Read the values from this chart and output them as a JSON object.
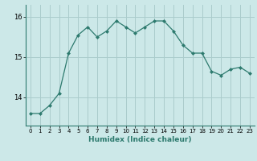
{
  "x": [
    0,
    1,
    2,
    3,
    4,
    5,
    6,
    7,
    8,
    9,
    10,
    11,
    12,
    13,
    14,
    15,
    16,
    17,
    18,
    19,
    20,
    21,
    22,
    23
  ],
  "y": [
    13.6,
    13.6,
    13.8,
    14.1,
    15.1,
    15.55,
    15.75,
    15.5,
    15.65,
    15.9,
    15.75,
    15.6,
    15.75,
    15.9,
    15.9,
    15.65,
    15.3,
    15.1,
    15.1,
    14.65,
    14.55,
    14.7,
    14.75,
    14.6
  ],
  "line_color": "#2d7a6e",
  "marker": "D",
  "marker_size": 2,
  "bg_color": "#cce8e8",
  "grid_color": "#aacccc",
  "xlabel": "Humidex (Indice chaleur)",
  "xlim": [
    -0.5,
    23.5
  ],
  "ylim": [
    13.3,
    16.3
  ],
  "yticks": [
    14,
    15,
    16
  ],
  "xticks": [
    0,
    1,
    2,
    3,
    4,
    5,
    6,
    7,
    8,
    9,
    10,
    11,
    12,
    13,
    14,
    15,
    16,
    17,
    18,
    19,
    20,
    21,
    22,
    23
  ]
}
